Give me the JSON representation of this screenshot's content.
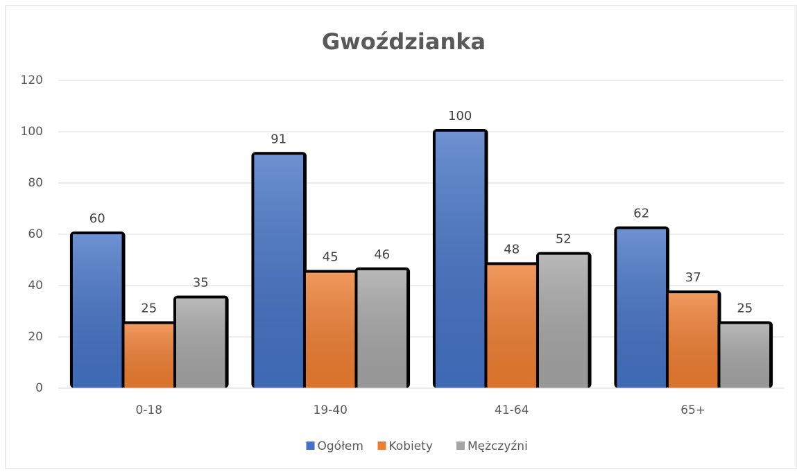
{
  "chart_data": {
    "type": "bar",
    "title": "Gwoździanka",
    "categories": [
      "0-18",
      "19-40",
      "41-64",
      "65+"
    ],
    "series": [
      {
        "name": "Ogółem",
        "color": "#4472c4",
        "values": [
          60,
          91,
          100,
          62
        ]
      },
      {
        "name": "Kobiety",
        "color": "#ed7d31",
        "values": [
          25,
          45,
          48,
          37
        ]
      },
      {
        "name": "Mężczyźni",
        "color": "#a5a5a5",
        "values": [
          35,
          46,
          52,
          25
        ]
      }
    ],
    "ylim": [
      0,
      120
    ],
    "yticks": [
      0,
      20,
      40,
      60,
      80,
      100,
      120
    ],
    "grid": true,
    "legend": "bottom"
  }
}
